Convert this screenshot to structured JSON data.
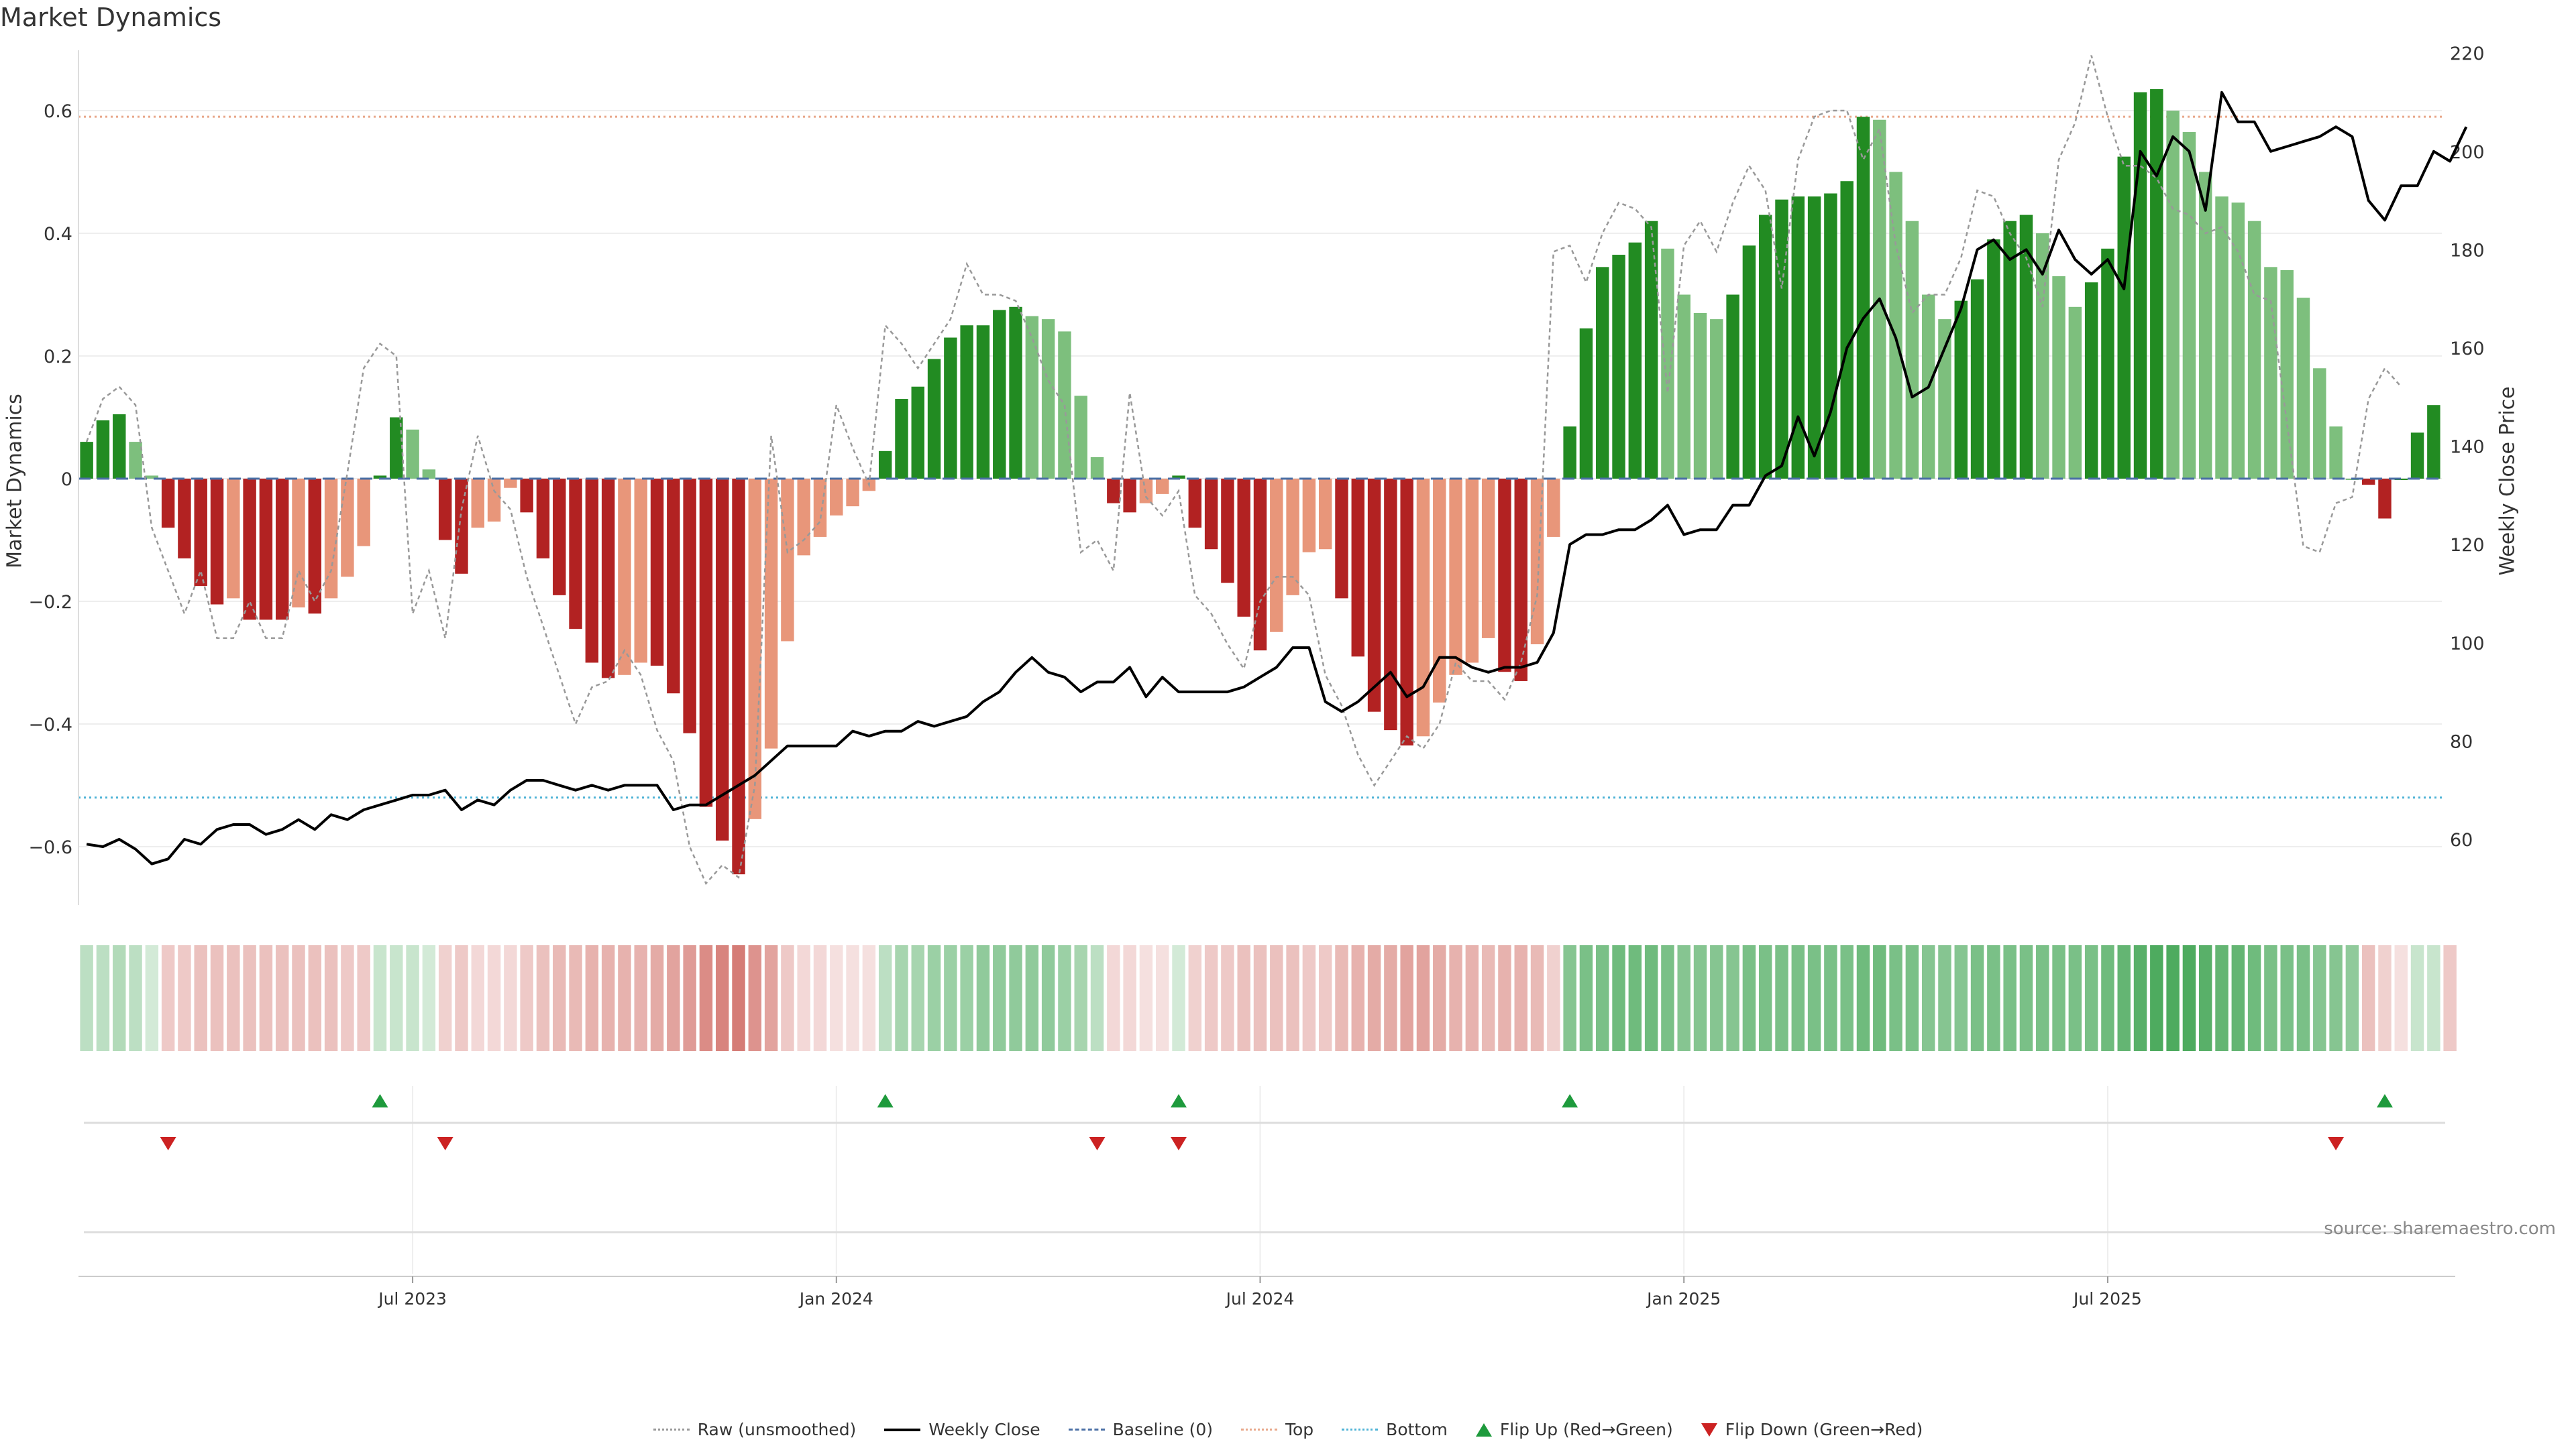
{
  "title": "Market Dynamics",
  "source": "source: sharemaestro.com",
  "chart_data": {
    "type": "bar",
    "ylabel": "Market Dynamics",
    "y2label": "Weekly Close Price",
    "ylim": [
      -0.7,
      0.7
    ],
    "y2lim": [
      47,
      220
    ],
    "yticks": [
      "-0.6",
      "-0.4",
      "-0.2",
      "0",
      "0.2",
      "0.4",
      "0.6"
    ],
    "y2ticks": [
      "60",
      "80",
      "100",
      "120",
      "140",
      "160",
      "180",
      "200",
      "220"
    ],
    "xticks": [
      {
        "label": "Jul 2023",
        "index": 20
      },
      {
        "label": "Jan 2024",
        "index": 46
      },
      {
        "label": "Jul 2024",
        "index": 72
      },
      {
        "label": "Jan 2025",
        "index": 98
      },
      {
        "label": "Jul 2025",
        "index": 124
      }
    ],
    "top_level": 0.59,
    "bottom_level": -0.52,
    "baseline": 0,
    "bars": [
      0.06,
      0.095,
      0.105,
      0.06,
      0.005,
      -0.08,
      -0.13,
      -0.175,
      -0.205,
      -0.195,
      -0.23,
      -0.23,
      -0.23,
      -0.21,
      -0.22,
      -0.195,
      -0.16,
      -0.11,
      0.005,
      0.1,
      0.08,
      0.015,
      -0.1,
      -0.155,
      -0.08,
      -0.07,
      -0.015,
      -0.055,
      -0.13,
      -0.19,
      -0.245,
      -0.3,
      -0.325,
      -0.32,
      -0.3,
      -0.305,
      -0.35,
      -0.415,
      -0.535,
      -0.59,
      -0.645,
      -0.555,
      -0.44,
      -0.265,
      -0.125,
      -0.095,
      -0.06,
      -0.045,
      -0.02,
      0.045,
      0.13,
      0.15,
      0.195,
      0.23,
      0.25,
      0.25,
      0.275,
      0.28,
      0.265,
      0.26,
      0.24,
      0.135,
      0.035,
      -0.04,
      -0.055,
      -0.04,
      -0.025,
      0.005,
      -0.08,
      -0.115,
      -0.17,
      -0.225,
      -0.28,
      -0.25,
      -0.19,
      -0.12,
      -0.115,
      -0.195,
      -0.29,
      -0.38,
      -0.41,
      -0.435,
      -0.42,
      -0.365,
      -0.32,
      -0.3,
      -0.26,
      -0.315,
      -0.33,
      -0.27,
      -0.095,
      0.085,
      0.245,
      0.345,
      0.365,
      0.385,
      0.42,
      0.375,
      0.3,
      0.27,
      0.26,
      0.3,
      0.38,
      0.43,
      0.455,
      0.46,
      0.46,
      0.465,
      0.485,
      0.59,
      0.585,
      0.5,
      0.42,
      0.3,
      0.26,
      0.29,
      0.325,
      0.39,
      0.42,
      0.43,
      0.4,
      0.33,
      0.28,
      0.32,
      0.375,
      0.525,
      0.63,
      0.635,
      0.6,
      0.565,
      0.5,
      0.46,
      0.45,
      0.42,
      0.345,
      0.34,
      0.295,
      0.18,
      0.085,
      0,
      -0.01,
      -0.065,
      0,
      0.075,
      0.12
    ],
    "raw": [
      0.06,
      0.13,
      0.15,
      0.12,
      -0.08,
      -0.15,
      -0.22,
      -0.15,
      -0.26,
      -0.26,
      -0.2,
      -0.26,
      -0.26,
      -0.15,
      -0.2,
      -0.15,
      0.01,
      0.18,
      0.22,
      0.2,
      -0.22,
      -0.15,
      -0.26,
      -0.05,
      0.07,
      -0.02,
      -0.05,
      -0.16,
      -0.24,
      -0.32,
      -0.4,
      -0.34,
      -0.33,
      -0.28,
      -0.32,
      -0.41,
      -0.46,
      -0.6,
      -0.66,
      -0.63,
      -0.65,
      -0.5,
      0.07,
      -0.12,
      -0.1,
      -0.07,
      0.12,
      0.05,
      -0.01,
      0.25,
      0.22,
      0.18,
      0.22,
      0.26,
      0.35,
      0.3,
      0.3,
      0.29,
      0.23,
      0.16,
      0.12,
      -0.12,
      -0.1,
      -0.15,
      0.14,
      -0.03,
      -0.06,
      -0.02,
      -0.19,
      -0.22,
      -0.27,
      -0.31,
      -0.2,
      -0.16,
      -0.16,
      -0.19,
      -0.32,
      -0.37,
      -0.45,
      -0.5,
      -0.46,
      -0.42,
      -0.44,
      -0.4,
      -0.3,
      -0.33,
      -0.33,
      -0.36,
      -0.3,
      -0.19,
      0.37,
      0.38,
      0.32,
      0.4,
      0.45,
      0.44,
      0.41,
      0.14,
      0.38,
      0.42,
      0.37,
      0.45,
      0.51,
      0.47,
      0.31,
      0.52,
      0.59,
      0.6,
      0.6,
      0.52,
      0.57,
      0.38,
      0.27,
      0.3,
      0.3,
      0.36,
      0.47,
      0.46,
      0.4,
      0.36,
      0.28,
      0.52,
      0.58,
      0.69,
      0.59,
      0.51,
      0.51,
      0.49,
      0.44,
      0.43,
      0.4,
      0.41,
      0.37,
      0.3,
      0.29,
      0.09,
      -0.11,
      -0.12,
      -0.04,
      -0.03,
      0.13,
      0.18,
      0.15
    ],
    "close": [
      59,
      58.5,
      60,
      58,
      55,
      56,
      60,
      59,
      62,
      63,
      63,
      61,
      62,
      64,
      62,
      65,
      64,
      66,
      67,
      68,
      69,
      69,
      70,
      66,
      68,
      67,
      70,
      72,
      72,
      71,
      70,
      71,
      70,
      71,
      71,
      71,
      66,
      67,
      67,
      69,
      71,
      73,
      76,
      79,
      79,
      79,
      79,
      82,
      81,
      82,
      82,
      84,
      83,
      84,
      85,
      88,
      90,
      94,
      97,
      94,
      93,
      90,
      92,
      92,
      95,
      89,
      93,
      90,
      90,
      90,
      90,
      91,
      93,
      95,
      99,
      99,
      88,
      86,
      88,
      91,
      94,
      89,
      91,
      97,
      97,
      95,
      94,
      95,
      95,
      96,
      102,
      120,
      122,
      122,
      123,
      123,
      125,
      128,
      122,
      123,
      123,
      128,
      128,
      134,
      136,
      146,
      138,
      147,
      160,
      166,
      170,
      162,
      150,
      152,
      160,
      168,
      180,
      182,
      178,
      180,
      175,
      184,
      178,
      175,
      178,
      172,
      200,
      195,
      203,
      200,
      188,
      212,
      206,
      206,
      200,
      201,
      202,
      203,
      205,
      203,
      190,
      186,
      193,
      193,
      200,
      198,
      205
    ],
    "heat": [
      0.3,
      0.3,
      0.35,
      0.3,
      0.2,
      0.35,
      0.35,
      0.4,
      0.4,
      0.4,
      0.4,
      0.4,
      0.4,
      0.4,
      0.4,
      0.4,
      0.35,
      0.35,
      0.25,
      0.25,
      0.25,
      0.2,
      0.3,
      0.35,
      0.25,
      0.25,
      0.25,
      0.35,
      0.4,
      0.45,
      0.45,
      0.5,
      0.5,
      0.5,
      0.5,
      0.55,
      0.6,
      0.65,
      0.75,
      0.8,
      0.85,
      0.7,
      0.6,
      0.35,
      0.25,
      0.25,
      0.2,
      0.2,
      0.2,
      0.3,
      0.4,
      0.4,
      0.45,
      0.45,
      0.45,
      0.5,
      0.5,
      0.5,
      0.5,
      0.5,
      0.45,
      0.4,
      0.3,
      0.25,
      0.25,
      0.2,
      0.2,
      0.2,
      0.3,
      0.35,
      0.35,
      0.4,
      0.4,
      0.4,
      0.4,
      0.35,
      0.35,
      0.45,
      0.5,
      0.55,
      0.55,
      0.6,
      0.6,
      0.55,
      0.5,
      0.5,
      0.45,
      0.5,
      0.5,
      0.45,
      0.3,
      0.55,
      0.6,
      0.6,
      0.65,
      0.65,
      0.65,
      0.6,
      0.55,
      0.55,
      0.55,
      0.55,
      0.6,
      0.6,
      0.6,
      0.6,
      0.6,
      0.6,
      0.6,
      0.65,
      0.65,
      0.6,
      0.6,
      0.55,
      0.55,
      0.55,
      0.6,
      0.6,
      0.6,
      0.6,
      0.6,
      0.6,
      0.6,
      0.6,
      0.65,
      0.7,
      0.75,
      0.8,
      0.8,
      0.8,
      0.75,
      0.7,
      0.7,
      0.65,
      0.6,
      0.6,
      0.6,
      0.55,
      0.55,
      0.5,
      0.4,
      0.3,
      0.2,
      0.25,
      0.25,
      0.35
    ],
    "flip_up": [
      18,
      49,
      67,
      91,
      141
    ],
    "flip_down": [
      5,
      22,
      62,
      67,
      138
    ],
    "legend": [
      {
        "name": "Raw (unsmoothed)",
        "style": "dotted",
        "color": "#999999"
      },
      {
        "name": "Weekly Close",
        "style": "solid",
        "color": "#000000"
      },
      {
        "name": "Baseline (0)",
        "style": "dashed",
        "color": "#4a6fa5"
      },
      {
        "name": "Top",
        "style": "dotted",
        "color": "#e8a78a"
      },
      {
        "name": "Bottom",
        "style": "dotted",
        "color": "#4fb3d6"
      },
      {
        "name": "Flip Up (Red→Green)",
        "style": "tri-up",
        "color": "#1e9a3c"
      },
      {
        "name": "Flip Down (Green→Red)",
        "style": "tri-down",
        "color": "#cc2222"
      }
    ],
    "legend_position": "bottom-center",
    "colors": {
      "green_dark": "#228B22",
      "green_light": "#7dbf7d",
      "red_dark": "#b22222",
      "red_light": "#e8967a"
    }
  }
}
